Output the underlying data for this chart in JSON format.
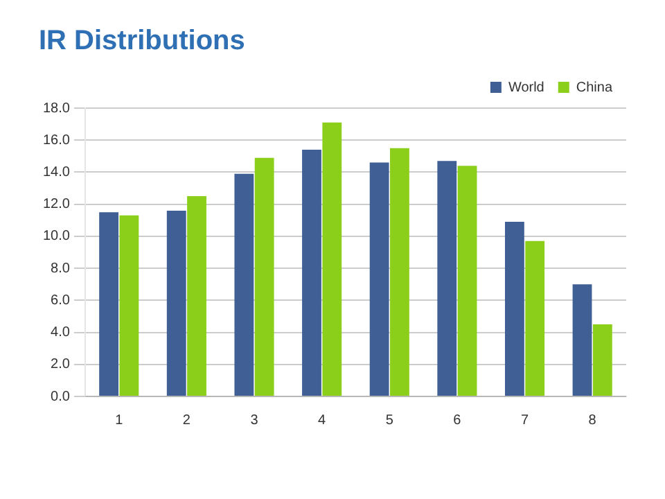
{
  "chart_data": {
    "type": "bar",
    "title": "IR Distributions",
    "categories": [
      "1",
      "2",
      "3",
      "4",
      "5",
      "6",
      "7",
      "8"
    ],
    "series": [
      {
        "name": "World",
        "color": "#3f5f95",
        "values": [
          11.5,
          11.6,
          13.9,
          15.4,
          14.6,
          14.7,
          10.9,
          7.0
        ]
      },
      {
        "name": "China",
        "color": "#8ccf1a",
        "values": [
          11.3,
          12.5,
          14.9,
          17.1,
          15.5,
          14.4,
          9.7,
          4.5
        ]
      }
    ],
    "ylim": [
      0,
      18
    ],
    "yticks": [
      {
        "value": 0,
        "label": "0.0"
      },
      {
        "value": 2,
        "label": "2.0"
      },
      {
        "value": 4,
        "label": "4.0"
      },
      {
        "value": 6,
        "label": "6.0"
      },
      {
        "value": 8,
        "label": "8.0"
      },
      {
        "value": 10,
        "label": "10.0"
      },
      {
        "value": 12,
        "label": "12.0"
      },
      {
        "value": 14,
        "label": "14.0"
      },
      {
        "value": 16,
        "label": "16.0"
      },
      {
        "value": 18,
        "label": "18.0"
      }
    ],
    "grid": "y",
    "legend": "top right"
  }
}
